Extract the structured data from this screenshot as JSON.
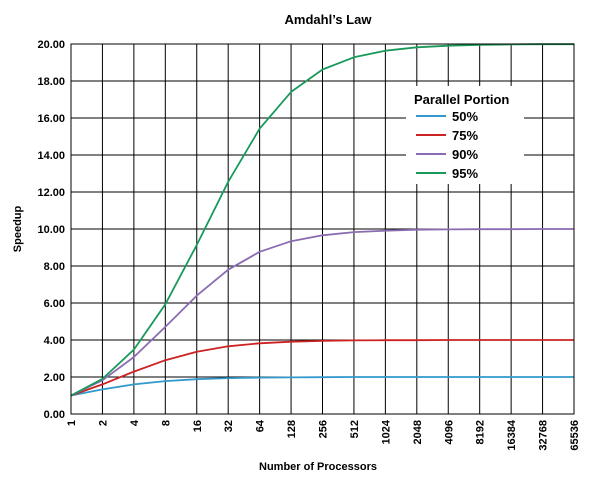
{
  "chart_data": {
    "type": "line",
    "title": "Amdahl’s Law",
    "xlabel": "Number of Processors",
    "ylabel": "Speedup",
    "x_scale": "log2",
    "categories": [
      "1",
      "2",
      "4",
      "8",
      "16",
      "32",
      "64",
      "128",
      "256",
      "512",
      "1024",
      "2048",
      "4096",
      "8192",
      "16384",
      "32768",
      "65536"
    ],
    "ylim": [
      0,
      20
    ],
    "yticks": [
      "0.00",
      "2.00",
      "4.00",
      "6.00",
      "8.00",
      "10.00",
      "12.00",
      "14.00",
      "16.00",
      "18.00",
      "20.00"
    ],
    "grid": true,
    "legend": {
      "title": "Parallel Portion",
      "placement": "top-right"
    },
    "series": [
      {
        "name": "50%",
        "color": "#3399cc",
        "values": [
          1.0,
          1.33,
          1.6,
          1.78,
          1.88,
          1.94,
          1.97,
          1.98,
          1.99,
          2.0,
          2.0,
          2.0,
          2.0,
          2.0,
          2.0,
          2.0,
          2.0
        ]
      },
      {
        "name": "75%",
        "color": "#cc2222",
        "values": [
          1.0,
          1.6,
          2.29,
          2.91,
          3.37,
          3.66,
          3.82,
          3.91,
          3.95,
          3.98,
          3.99,
          3.99,
          4.0,
          4.0,
          4.0,
          4.0,
          4.0
        ]
      },
      {
        "name": "90%",
        "color": "#8b6bb1",
        "values": [
          1.0,
          1.82,
          3.08,
          4.71,
          6.4,
          7.8,
          8.77,
          9.34,
          9.66,
          9.83,
          9.91,
          9.96,
          9.98,
          9.99,
          9.99,
          10.0,
          10.0
        ]
      },
      {
        "name": "95%",
        "color": "#1a9a5a",
        "values": [
          1.0,
          1.9,
          3.48,
          5.93,
          9.14,
          12.55,
          15.42,
          17.41,
          18.62,
          19.28,
          19.64,
          19.82,
          19.91,
          19.95,
          19.98,
          19.99,
          19.99
        ]
      }
    ]
  }
}
